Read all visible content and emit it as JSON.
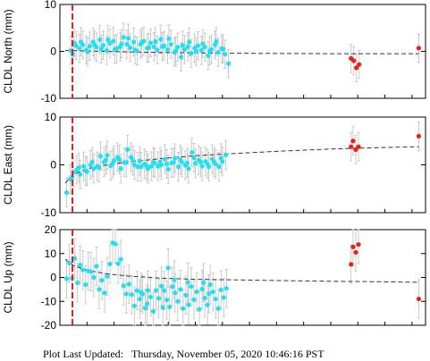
{
  "footer": {
    "label": "Plot Last Updated:",
    "timestamp": "Thursday, November 05, 2020 10:46:16 PST"
  },
  "colors": {
    "early_points": "#22e0f2",
    "late_points": "#e8201c",
    "error_bars": "#bdbdbd",
    "trend_line": "#333333",
    "marker_line": "#e02020"
  },
  "chart_data": [
    {
      "type": "scatter",
      "ylabel": "CLDL North (mm)",
      "ylim": [
        -10,
        10
      ],
      "yticks": [
        -10,
        0,
        10
      ],
      "grid": false,
      "event_marker_x": 0.4,
      "error": 3,
      "early_series": [
        [
          1.6,
          0.2
        ],
        [
          1.9,
          -0.6
        ],
        [
          2.4,
          1.2
        ],
        [
          2.9,
          0.6
        ],
        [
          3.4,
          1.4
        ],
        [
          3.9,
          0.3
        ],
        [
          4.4,
          1.1
        ],
        [
          4.9,
          2.0
        ],
        [
          5.4,
          0.9
        ],
        [
          5.9,
          2.5
        ],
        [
          6.4,
          1.3
        ],
        [
          6.9,
          0.2
        ],
        [
          7.4,
          1.7
        ],
        [
          7.9,
          2.2
        ],
        [
          8.4,
          0.6
        ],
        [
          8.9,
          1.0
        ],
        [
          9.4,
          3.0
        ],
        [
          9.9,
          1.5
        ],
        [
          10.4,
          0.8
        ],
        [
          10.9,
          2.0
        ],
        [
          11.4,
          0.1
        ],
        [
          11.9,
          1.5
        ],
        [
          12.4,
          2.2
        ],
        [
          12.9,
          0.7
        ],
        [
          13.4,
          1.8
        ],
        [
          13.9,
          1.0
        ],
        [
          14.4,
          0.3
        ],
        [
          14.9,
          2.6
        ],
        [
          15.4,
          1.2
        ],
        [
          15.9,
          0.4
        ],
        [
          16.4,
          1.5
        ],
        [
          16.9,
          -0.2
        ],
        [
          17.4,
          0.9
        ],
        [
          17.9,
          -1.2
        ],
        [
          18.4,
          0.4
        ],
        [
          18.9,
          1.0
        ],
        [
          19.4,
          -0.4
        ],
        [
          19.9,
          0.7
        ],
        [
          20.4,
          1.2
        ],
        [
          20.9,
          0.2
        ],
        [
          21.4,
          0.9
        ],
        [
          21.9,
          -0.9
        ],
        [
          22.4,
          0.4
        ],
        [
          22.9,
          1.4
        ],
        [
          23.4,
          -0.2
        ],
        [
          23.9,
          0.6
        ],
        [
          24.4,
          -0.6
        ],
        [
          24.9,
          -2.6
        ],
        [
          2.1,
          1.8
        ],
        [
          3.1,
          2.0
        ],
        [
          4.1,
          -0.1
        ],
        [
          5.1,
          1.4
        ],
        [
          6.1,
          0.5
        ],
        [
          7.1,
          2.5
        ],
        [
          8.1,
          0.4
        ],
        [
          9.1,
          1.6
        ],
        [
          10.1,
          2.8
        ],
        [
          11.1,
          0.3
        ],
        [
          12.1,
          1.9
        ],
        [
          13.1,
          0.8
        ],
        [
          14.1,
          2.1
        ],
        [
          15.1,
          1.0
        ],
        [
          16.1,
          2.7
        ],
        [
          17.1,
          0.1
        ],
        [
          18.1,
          1.3
        ],
        [
          19.1,
          2.0
        ],
        [
          20.1,
          0.0
        ],
        [
          21.1,
          1.6
        ],
        [
          22.1,
          0.1
        ],
        [
          23.1,
          2.1
        ],
        [
          24.1,
          0.5
        ]
      ],
      "late_series": [
        [
          43.0,
          -1.5
        ],
        [
          43.4,
          -2.0
        ],
        [
          43.8,
          -3.5
        ],
        [
          44.2,
          -2.8
        ],
        [
          53.0,
          0.7
        ]
      ],
      "trend_line": [
        [
          0.8,
          0.2
        ],
        [
          13,
          -0.2
        ],
        [
          26,
          -0.4
        ],
        [
          40,
          -0.5
        ],
        [
          53,
          -0.5
        ]
      ]
    },
    {
      "type": "scatter",
      "ylabel": "CLDL East (mm)",
      "ylim": [
        -10,
        10
      ],
      "yticks": [
        -10,
        0,
        10
      ],
      "grid": false,
      "event_marker_x": 0.4,
      "error": 3,
      "early_series": [
        [
          1.0,
          -5.8
        ],
        [
          1.5,
          -3.0
        ],
        [
          2.0,
          -1.6
        ],
        [
          2.5,
          -1.0
        ],
        [
          3.0,
          -2.0
        ],
        [
          3.5,
          -0.3
        ],
        [
          4.0,
          -1.4
        ],
        [
          4.5,
          0.0
        ],
        [
          5.0,
          -0.8
        ],
        [
          5.5,
          -0.3
        ],
        [
          6.0,
          1.8
        ],
        [
          6.5,
          0.6
        ],
        [
          7.0,
          2.0
        ],
        [
          7.5,
          -0.2
        ],
        [
          8.0,
          0.9
        ],
        [
          8.5,
          1.6
        ],
        [
          9.0,
          -0.8
        ],
        [
          9.5,
          0.5
        ],
        [
          10.0,
          3.2
        ],
        [
          10.5,
          1.6
        ],
        [
          11.0,
          0.0
        ],
        [
          11.5,
          -0.4
        ],
        [
          12.0,
          -0.4
        ],
        [
          12.5,
          0.2
        ],
        [
          13.0,
          -0.8
        ],
        [
          13.5,
          -0.3
        ],
        [
          14.0,
          0.4
        ],
        [
          14.5,
          -0.3
        ],
        [
          15.0,
          0.0
        ],
        [
          15.5,
          1.2
        ],
        [
          16.0,
          -0.9
        ],
        [
          16.5,
          0.4
        ],
        [
          17.0,
          1.4
        ],
        [
          17.5,
          -0.4
        ],
        [
          18.0,
          0.6
        ],
        [
          18.5,
          -0.1
        ],
        [
          19.0,
          -0.8
        ],
        [
          19.5,
          2.6
        ],
        [
          20.0,
          0.3
        ],
        [
          20.5,
          1.0
        ],
        [
          21.0,
          -0.3
        ],
        [
          21.5,
          0.7
        ],
        [
          22.0,
          -0.4
        ],
        [
          22.5,
          1.2
        ],
        [
          23.0,
          0.2
        ],
        [
          23.5,
          -0.4
        ],
        [
          24.0,
          0.7
        ],
        [
          24.5,
          2.1
        ],
        [
          1.8,
          -2.6
        ],
        [
          2.8,
          -0.6
        ],
        [
          3.8,
          -1.2
        ],
        [
          4.8,
          0.6
        ],
        [
          5.8,
          -0.6
        ],
        [
          6.8,
          1.0
        ],
        [
          7.8,
          0.3
        ],
        [
          8.8,
          1.1
        ],
        [
          9.8,
          0.5
        ],
        [
          10.8,
          0.9
        ],
        [
          11.8,
          0.8
        ],
        [
          12.8,
          -0.2
        ],
        [
          13.8,
          0.6
        ],
        [
          14.8,
          0.6
        ],
        [
          15.8,
          0.2
        ],
        [
          16.8,
          0.5
        ],
        [
          17.8,
          1.1
        ],
        [
          18.8,
          0.4
        ],
        [
          19.8,
          1.5
        ],
        [
          20.8,
          0.6
        ],
        [
          21.8,
          0.2
        ],
        [
          22.8,
          0.6
        ],
        [
          23.8,
          1.4
        ]
      ],
      "late_series": [
        [
          43.0,
          3.8
        ],
        [
          43.3,
          5.0
        ],
        [
          43.7,
          3.2
        ],
        [
          44.1,
          3.8
        ],
        [
          53.0,
          6.0
        ]
      ],
      "trend_line": [
        [
          0.8,
          -3.8
        ],
        [
          2,
          -2.0
        ],
        [
          4,
          -0.8
        ],
        [
          7,
          0.0
        ],
        [
          10,
          0.6
        ],
        [
          15,
          1.3
        ],
        [
          20,
          1.9
        ],
        [
          26,
          2.4
        ],
        [
          33,
          2.9
        ],
        [
          40,
          3.3
        ],
        [
          47,
          3.6
        ],
        [
          53,
          3.8
        ]
      ]
    },
    {
      "type": "scatter",
      "ylabel": "CLDL Up (mm)",
      "ylim": [
        -20,
        20
      ],
      "yticks": [
        -20,
        -10,
        0,
        10,
        20
      ],
      "grid": false,
      "event_marker_x": 0.4,
      "error": 8,
      "early_series": [
        [
          1.0,
          -0.5
        ],
        [
          1.4,
          6.0
        ],
        [
          1.8,
          -0.3
        ],
        [
          2.2,
          8.0
        ],
        [
          2.6,
          -2.2
        ],
        [
          3.0,
          5.2
        ],
        [
          3.4,
          3.2
        ],
        [
          3.8,
          -3.0
        ],
        [
          4.2,
          2.7
        ],
        [
          4.6,
          2.4
        ],
        [
          5.0,
          0.0
        ],
        [
          5.4,
          4.7
        ],
        [
          5.8,
          -5.0
        ],
        [
          6.2,
          -1.2
        ],
        [
          6.6,
          -6.5
        ],
        [
          7.0,
          0.4
        ],
        [
          7.4,
          5.6
        ],
        [
          7.8,
          14.5
        ],
        [
          8.2,
          14.0
        ],
        [
          8.6,
          5.8
        ],
        [
          9.0,
          7.6
        ],
        [
          9.4,
          -3.5
        ],
        [
          9.8,
          -6.9
        ],
        [
          10.2,
          -2.8
        ],
        [
          10.6,
          -7.2
        ],
        [
          11.0,
          -11.9
        ],
        [
          11.4,
          -5.5
        ],
        [
          11.8,
          -9.0
        ],
        [
          12.2,
          -7.0
        ],
        [
          12.6,
          -12.8
        ],
        [
          13.0,
          -5.4
        ],
        [
          13.4,
          -8.2
        ],
        [
          13.8,
          -14.2
        ],
        [
          14.2,
          -5.4
        ],
        [
          14.6,
          -8.7
        ],
        [
          15.0,
          -3.6
        ],
        [
          15.4,
          -5.5
        ],
        [
          15.8,
          -9.4
        ],
        [
          16.2,
          -12.3
        ],
        [
          16.6,
          -3.8
        ],
        [
          17.0,
          -6.4
        ],
        [
          17.4,
          -10.0
        ],
        [
          17.8,
          -5.0
        ],
        [
          18.2,
          -13.0
        ],
        [
          18.6,
          -7.4
        ],
        [
          19.0,
          -11.4
        ],
        [
          19.4,
          -3.8
        ],
        [
          19.8,
          -9.3
        ],
        [
          20.2,
          -6.0
        ],
        [
          20.6,
          -13.3
        ],
        [
          21.0,
          -4.9
        ],
        [
          21.4,
          -8.6
        ],
        [
          21.8,
          -11.5
        ],
        [
          22.2,
          -3.0
        ],
        [
          22.6,
          -6.0
        ],
        [
          23.0,
          -9.0
        ],
        [
          23.4,
          -13.0
        ],
        [
          23.8,
          -5.2
        ],
        [
          24.2,
          -8.4
        ],
        [
          24.6,
          -4.6
        ],
        [
          16.0,
          4.0
        ],
        [
          16.9,
          -1.0
        ],
        [
          18.9,
          -2.0
        ],
        [
          22.0,
          -6.8
        ],
        [
          12.0,
          -6.2
        ],
        [
          12.9,
          -11.0
        ],
        [
          15.2,
          -12.6
        ],
        [
          21.2,
          -2.2
        ]
      ],
      "late_series": [
        [
          43.0,
          5.5
        ],
        [
          43.3,
          12.8
        ],
        [
          43.7,
          10.5
        ],
        [
          44.1,
          13.8
        ],
        [
          53.0,
          -9.0
        ]
      ],
      "trend_line": [
        [
          0.8,
          7.5
        ],
        [
          2,
          5.0
        ],
        [
          4,
          3.0
        ],
        [
          7,
          1.5
        ],
        [
          10,
          0.6
        ],
        [
          15,
          -0.3
        ],
        [
          20,
          -0.8
        ],
        [
          26,
          -1.0
        ],
        [
          33,
          -1.3
        ],
        [
          40,
          -1.6
        ],
        [
          47,
          -1.8
        ],
        [
          53,
          -2.0
        ]
      ]
    }
  ]
}
